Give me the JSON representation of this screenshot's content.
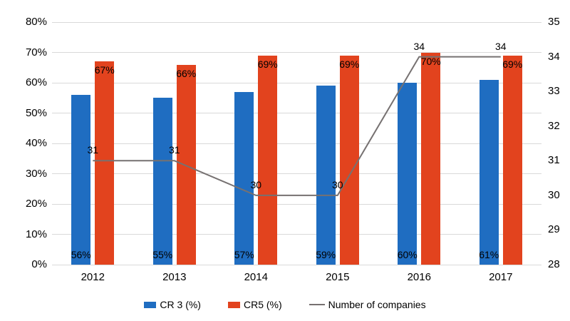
{
  "chart_data": {
    "type": "combo-bar-line",
    "title": "",
    "categories": [
      "2012",
      "2013",
      "2014",
      "2015",
      "2016",
      "2017"
    ],
    "series": [
      {
        "name": "CR 3 (%)",
        "type": "bar",
        "axis": "left",
        "color": "#1f6dc1",
        "values": [
          56,
          55,
          57,
          59,
          60,
          61
        ],
        "data_labels": [
          "56%",
          "55%",
          "57%",
          "59%",
          "60%",
          "61%"
        ]
      },
      {
        "name": "CR5 (%)",
        "type": "bar",
        "axis": "left",
        "color": "#e2431e",
        "values": [
          67,
          66,
          69,
          69,
          70,
          69
        ],
        "data_labels": [
          "67%",
          "66%",
          "69%",
          "69%",
          "70%",
          "69%"
        ]
      },
      {
        "name": "Number of companies",
        "type": "line",
        "axis": "right",
        "color": "#767171",
        "values": [
          31,
          31,
          30,
          30,
          34,
          34
        ],
        "data_labels": [
          "31",
          "31",
          "30",
          "30",
          "34",
          "34"
        ],
        "label_shown": [
          true,
          true,
          true,
          true,
          true,
          true
        ]
      }
    ],
    "left_axis": {
      "min": 0,
      "max": 80,
      "step": 10,
      "tick_labels": [
        "0%",
        "10%",
        "20%",
        "30%",
        "40%",
        "50%",
        "60%",
        "70%",
        "80%"
      ]
    },
    "right_axis": {
      "min": 28,
      "max": 35,
      "step": 1,
      "tick_labels": [
        "28",
        "29",
        "30",
        "31",
        "32",
        "33",
        "34",
        "35"
      ]
    },
    "grid": true,
    "legend_position": "bottom",
    "colors": {
      "gridline": "#d9d9d9",
      "text": "#000000",
      "background": "#ffffff"
    }
  }
}
